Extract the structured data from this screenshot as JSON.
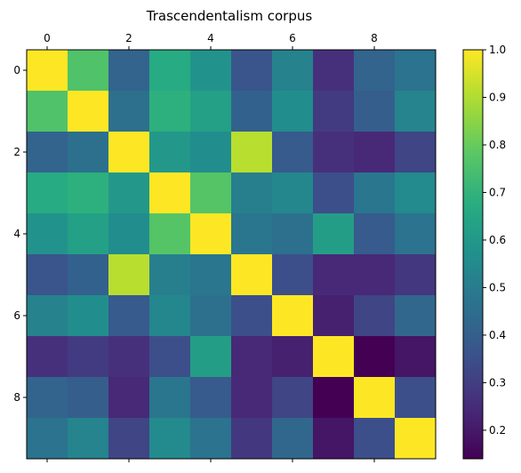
{
  "chart_data": {
    "type": "heatmap",
    "title": "Trascendentalism corpus",
    "xlabel": "",
    "ylabel": "",
    "x_ticks": [
      0,
      2,
      4,
      6,
      8
    ],
    "y_ticks": [
      0,
      2,
      4,
      6,
      8
    ],
    "x_tick_position": "top",
    "colormap": "viridis",
    "color_range": [
      0.14,
      1.0
    ],
    "colorbar_ticks": [
      0.2,
      0.3,
      0.4,
      0.5,
      0.6,
      0.7,
      0.8,
      0.9,
      1.0
    ],
    "colorbar_tick_labels": [
      "0.2",
      "0.3",
      "0.4",
      "0.5",
      "0.6",
      "0.7",
      "0.8",
      "0.9",
      "1.0"
    ],
    "grid": false,
    "matrix": [
      [
        1.0,
        0.76,
        0.42,
        0.67,
        0.58,
        0.37,
        0.52,
        0.26,
        0.42,
        0.47
      ],
      [
        0.76,
        1.0,
        0.46,
        0.69,
        0.63,
        0.41,
        0.56,
        0.29,
        0.4,
        0.53
      ],
      [
        0.42,
        0.46,
        1.0,
        0.6,
        0.56,
        0.91,
        0.39,
        0.26,
        0.24,
        0.32
      ],
      [
        0.67,
        0.69,
        0.6,
        1.0,
        0.77,
        0.51,
        0.54,
        0.35,
        0.48,
        0.55
      ],
      [
        0.58,
        0.63,
        0.56,
        0.77,
        1.0,
        0.48,
        0.46,
        0.62,
        0.39,
        0.47
      ],
      [
        0.37,
        0.41,
        0.91,
        0.51,
        0.48,
        1.0,
        0.35,
        0.24,
        0.24,
        0.28
      ],
      [
        0.52,
        0.56,
        0.39,
        0.54,
        0.46,
        0.35,
        1.0,
        0.22,
        0.32,
        0.43
      ],
      [
        0.26,
        0.29,
        0.26,
        0.35,
        0.62,
        0.24,
        0.22,
        1.0,
        0.14,
        0.19
      ],
      [
        0.42,
        0.4,
        0.24,
        0.48,
        0.39,
        0.24,
        0.32,
        0.14,
        1.0,
        0.35
      ],
      [
        0.47,
        0.53,
        0.32,
        0.55,
        0.47,
        0.28,
        0.43,
        0.19,
        0.35,
        1.0
      ]
    ]
  }
}
